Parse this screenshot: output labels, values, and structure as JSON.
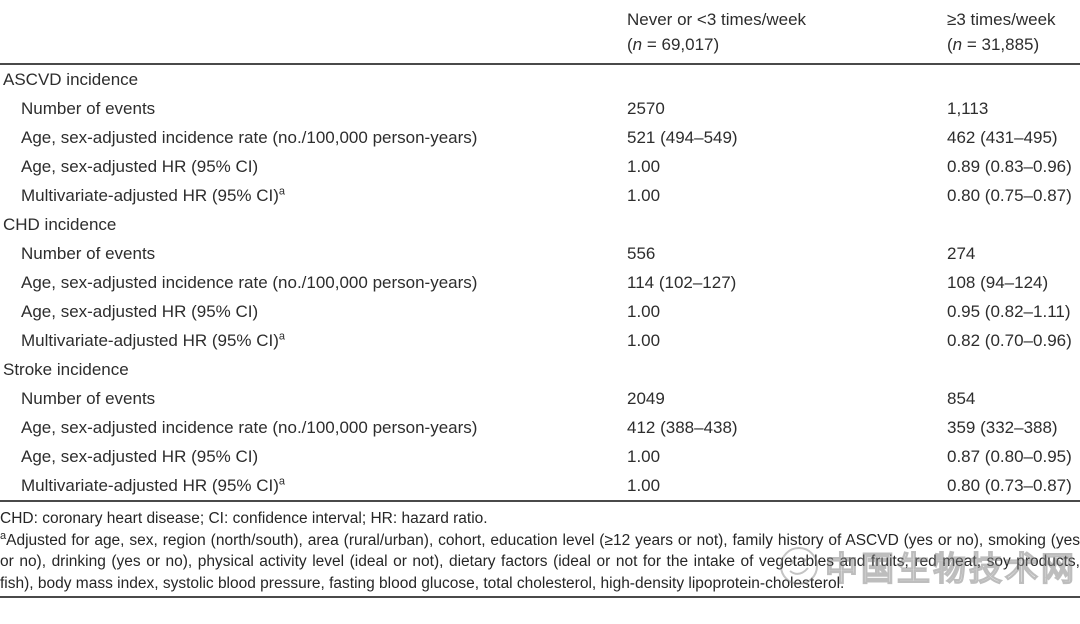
{
  "table": {
    "columns": [
      {
        "line1": "Never or <3 times/week",
        "n_pre": "(",
        "n_var": "n",
        "n_post": " = 69,017)"
      },
      {
        "line1": "≥3 times/week",
        "n_pre": "(",
        "n_var": "n",
        "n_post": " = 31,885)"
      }
    ],
    "sections": [
      {
        "label": "ASCVD incidence",
        "rows": [
          {
            "label": "Number of events",
            "c1": "2570",
            "c2": "1,113"
          },
          {
            "label": "Age, sex-adjusted incidence rate (no./100,000 person-years)",
            "c1": "521 (494–549)",
            "c2": "462 (431–495)"
          },
          {
            "label": "Age, sex-adjusted HR (95% CI)",
            "c1": "1.00",
            "c2": "0.89 (0.83–0.96)"
          },
          {
            "label": "Multivariate-adjusted HR (95% CI)",
            "sup": "a",
            "c1": "1.00",
            "c2": "0.80 (0.75–0.87)"
          }
        ]
      },
      {
        "label": "CHD incidence",
        "rows": [
          {
            "label": "Number of events",
            "c1": "556",
            "c2": "274"
          },
          {
            "label": "Age, sex-adjusted incidence rate (no./100,000 person-years)",
            "c1": "114 (102–127)",
            "c2": "108 (94–124)"
          },
          {
            "label": "Age, sex-adjusted HR (95% CI)",
            "c1": "1.00",
            "c2": "0.95 (0.82–1.11)"
          },
          {
            "label": "Multivariate-adjusted HR (95% CI)",
            "sup": "a",
            "c1": "1.00",
            "c2": "0.82 (0.70–0.96)"
          }
        ]
      },
      {
        "label": "Stroke incidence",
        "rows": [
          {
            "label": "Number of events",
            "c1": "2049",
            "c2": "854"
          },
          {
            "label": "Age, sex-adjusted incidence rate (no./100,000 person-years)",
            "c1": "412 (388–438)",
            "c2": "359 (332–388)"
          },
          {
            "label": "Age, sex-adjusted HR (95% CI)",
            "c1": "1.00",
            "c2": "0.87 (0.80–0.95)"
          },
          {
            "label": "Multivariate-adjusted HR (95% CI)",
            "sup": "a",
            "c1": "1.00",
            "c2": "0.80 (0.73–0.87)"
          }
        ]
      }
    ]
  },
  "footnotes": {
    "abbrev": "CHD: coronary heart disease; CI: confidence interval; HR: hazard ratio.",
    "adjust_sup": "a",
    "adjust": "Adjusted for age, sex, region (north/south), area (rural/urban), cohort, education level (≥12 years or not), family history of ASCVD (yes or no), smoking (yes or no), drinking (yes or no), physical activity level (ideal or not), dietary factors (ideal or not for the intake of vegetables and fruits, red meat, soy products, fish), body mass index, systolic blood pressure, fasting blood glucose, total cholesterol, high-density lipoprotein-cholesterol."
  },
  "watermark": {
    "text": "中国生物技术网"
  },
  "colors": {
    "rule": "#4a4a4a",
    "text": "#2d2d2d",
    "watermark_stroke": "#737373"
  }
}
